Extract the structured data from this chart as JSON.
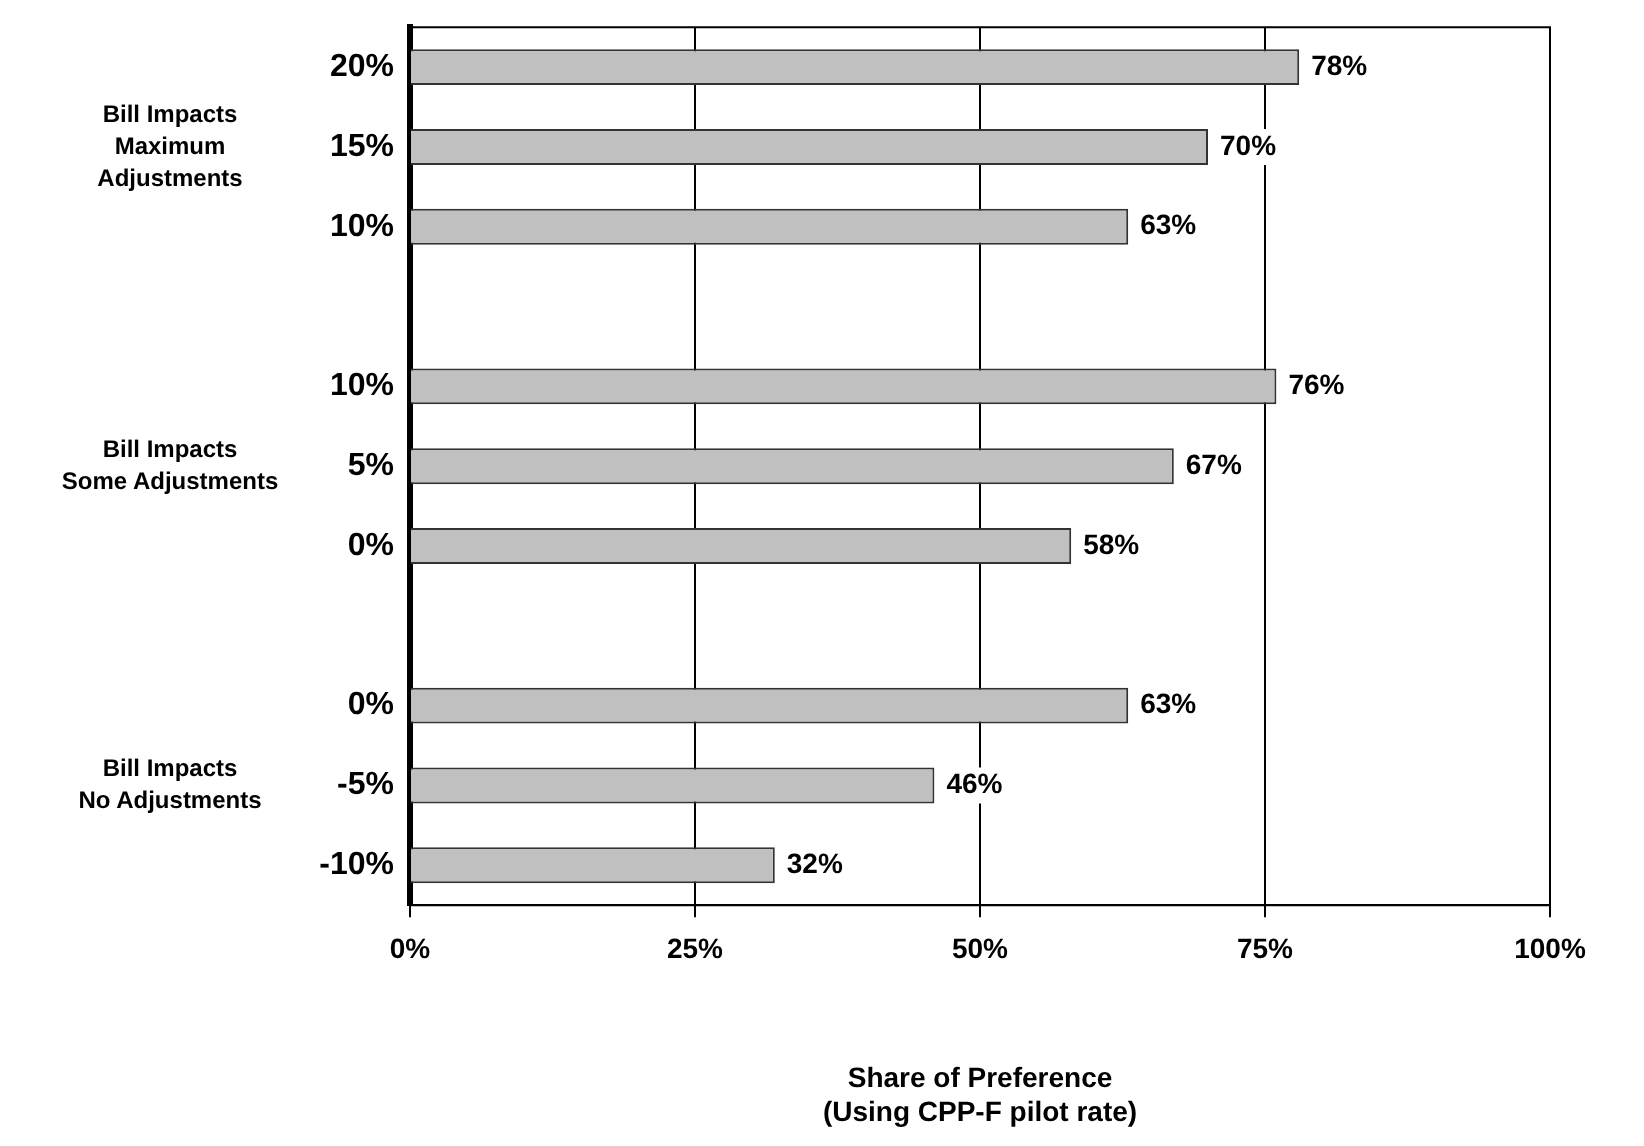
{
  "chart_data": {
    "type": "bar",
    "orientation": "horizontal",
    "xlabel": "Share of Preference\n(Using CPP-F pilot rate)",
    "categories": [
      "20%",
      "15%",
      "10%",
      null,
      "10%",
      "5%",
      "0%",
      null,
      "0%",
      "-5%",
      "-10%"
    ],
    "values": [
      78,
      70,
      63,
      null,
      76,
      67,
      58,
      null,
      63,
      46,
      32
    ],
    "value_labels": [
      "78%",
      "70%",
      "63%",
      null,
      "76%",
      "67%",
      "58%",
      null,
      "63%",
      "46%",
      "32%"
    ],
    "color": "#c0c0c0",
    "xlim": [
      0,
      100
    ],
    "xticks": [
      {
        "value": 0,
        "label": "0%"
      },
      {
        "value": 25,
        "label": "25%"
      },
      {
        "value": 50,
        "label": "50%"
      },
      {
        "value": 75,
        "label": "75%"
      },
      {
        "value": 100,
        "label": "100%"
      }
    ],
    "grid": "x",
    "legend": false,
    "annotations": [
      "Bill Impacts\nMaximum\nAdjustments",
      "Bill Impacts\nSome Adjustments",
      "Bill Impacts\nNo Adjustments"
    ]
  }
}
